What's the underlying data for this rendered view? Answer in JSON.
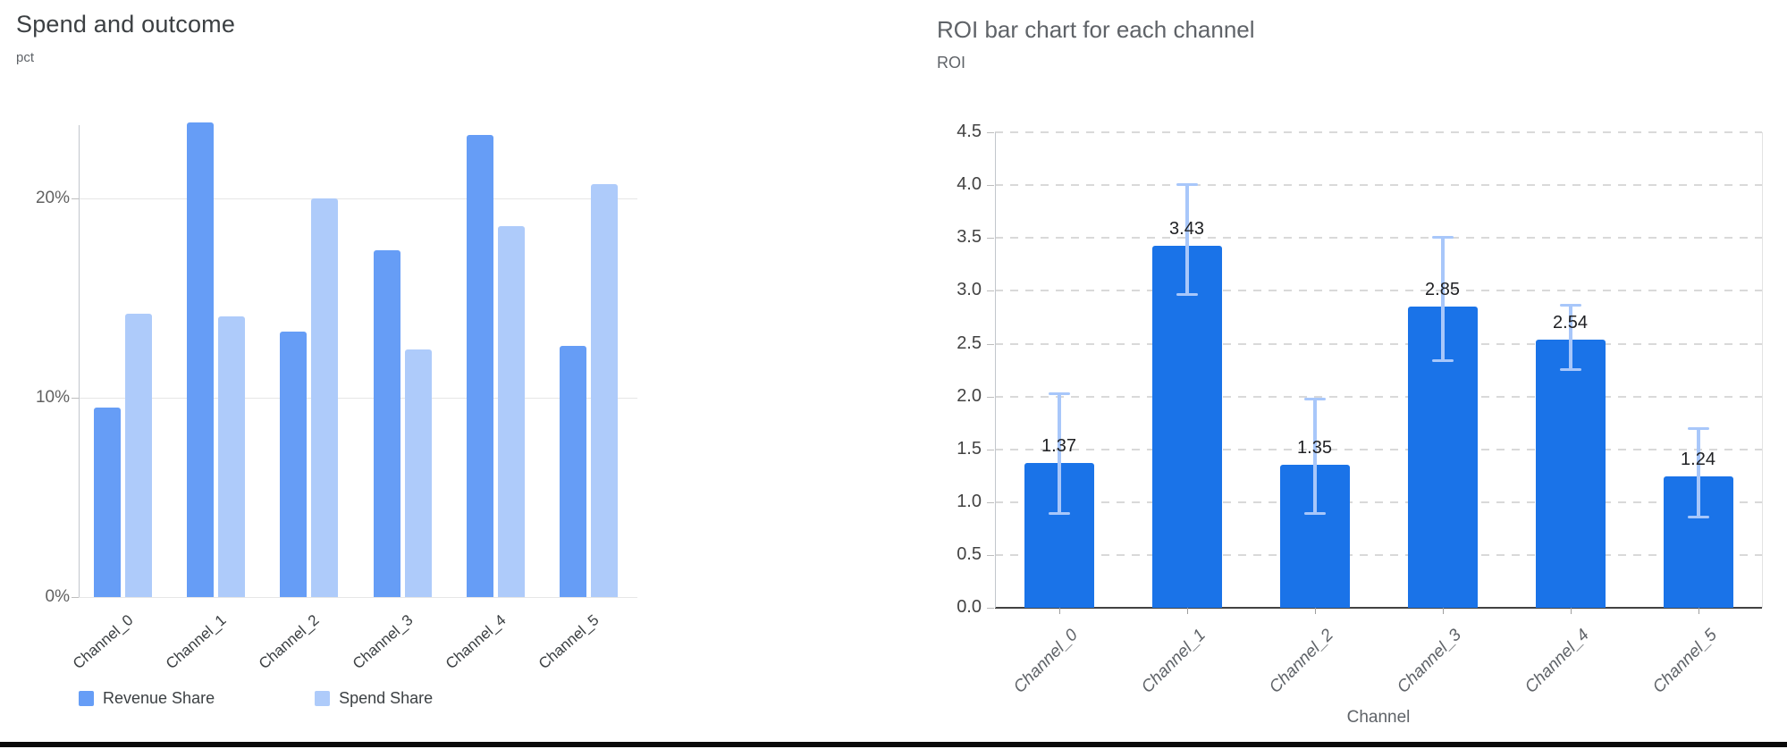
{
  "left_chart": {
    "title": "Spend and outcome",
    "y_axis_title": "pct",
    "legend": {
      "items": [
        {
          "label": "Revenue Share"
        },
        {
          "label": "Spend Share"
        }
      ]
    }
  },
  "right_chart": {
    "title": "ROI bar chart for each channel",
    "y_axis_title": "ROI",
    "x_axis_title": "Channel"
  },
  "colors": {
    "revenue_share": "#669DF6",
    "spend_share": "#AECBFA",
    "roi_bar": "#1A73E8",
    "error_bar": "#A8C7FA"
  },
  "chart_data": [
    {
      "type": "bar",
      "title": "Spend and outcome",
      "xlabel": "",
      "ylabel": "pct",
      "categories": [
        "Channel_0",
        "Channel_1",
        "Channel_2",
        "Channel_3",
        "Channel_4",
        "Channel_5"
      ],
      "series": [
        {
          "name": "Revenue Share",
          "values": [
            9.5,
            23.8,
            13.3,
            17.4,
            23.2,
            12.6
          ]
        },
        {
          "name": "Spend Share",
          "values": [
            14.2,
            14.1,
            20.0,
            12.4,
            18.6,
            20.7
          ]
        }
      ],
      "y_ticks": [
        {
          "v": 0,
          "label": "0%"
        },
        {
          "v": 10,
          "label": "10%"
        },
        {
          "v": 20,
          "label": "20%"
        }
      ],
      "ylim": [
        0,
        25.2
      ],
      "grid": "solid",
      "legend_position": "bottom"
    },
    {
      "type": "bar",
      "title": "ROI bar chart for each channel",
      "xlabel": "Channel",
      "ylabel": "ROI",
      "categories": [
        "Channel_0",
        "Channel_1",
        "Channel_2",
        "Channel_3",
        "Channel_4",
        "Channel_5"
      ],
      "values": [
        1.37,
        3.43,
        1.35,
        2.85,
        2.54,
        1.24
      ],
      "value_labels": [
        "1.37",
        "3.43",
        "1.35",
        "2.85",
        "2.54",
        "1.24"
      ],
      "error_low": [
        0.88,
        2.95,
        0.88,
        2.33,
        2.24,
        0.85
      ],
      "error_high": [
        2.04,
        4.02,
        1.99,
        3.52,
        2.88,
        1.71
      ],
      "y_ticks": [
        {
          "v": 0.0,
          "label": "0.0"
        },
        {
          "v": 0.5,
          "label": "0.5"
        },
        {
          "v": 1.0,
          "label": "1.0"
        },
        {
          "v": 1.5,
          "label": "1.5"
        },
        {
          "v": 2.0,
          "label": "2.0"
        },
        {
          "v": 2.5,
          "label": "2.5"
        },
        {
          "v": 3.0,
          "label": "3.0"
        },
        {
          "v": 3.5,
          "label": "3.5"
        },
        {
          "v": 4.0,
          "label": "4.0"
        },
        {
          "v": 4.5,
          "label": "4.5"
        }
      ],
      "ylim": [
        0,
        4.5
      ],
      "grid": "dashed"
    }
  ]
}
